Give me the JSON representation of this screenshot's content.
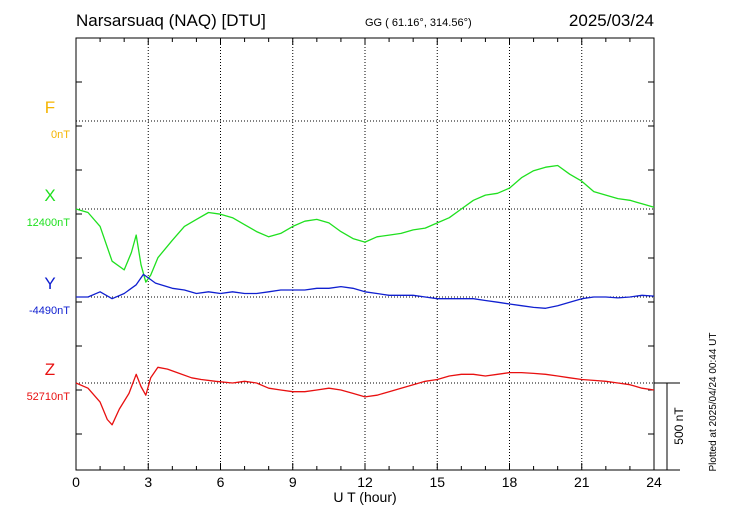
{
  "header": {
    "station": "Narsarsuaq (NAQ)  [DTU]",
    "coords": "GG ( 61.16°, 314.56°)",
    "date": "2025/03/24"
  },
  "side_note": "Plotted at 2025/04/24 00:44 UT",
  "chart_data": {
    "type": "line",
    "title": "Narsarsuaq (NAQ)  [DTU]",
    "xlabel": "U T (hour)",
    "xlim": [
      0,
      24
    ],
    "x_ticks": [
      0,
      3,
      6,
      9,
      12,
      15,
      18,
      21,
      24
    ],
    "grid": true,
    "scale_bar": {
      "label": "500 nT",
      "value_nT": 500
    },
    "series": [
      {
        "name": "F",
        "baseline_label": "0nT",
        "color": "#f5b400",
        "x": [],
        "y": []
      },
      {
        "name": "X",
        "baseline_label": "12400nT",
        "color": "#1fe01f",
        "x": [
          0,
          0.5,
          1,
          1.5,
          2,
          2.3,
          2.5,
          2.7,
          2.9,
          3.1,
          3.4,
          4,
          4.5,
          5,
          5.5,
          6,
          6.5,
          7,
          7.5,
          8,
          8.5,
          9,
          9.5,
          10,
          10.5,
          11,
          11.5,
          12,
          12.5,
          13,
          13.5,
          14,
          14.5,
          15,
          15.5,
          16,
          16.5,
          17,
          17.5,
          18,
          18.5,
          19,
          19.5,
          20,
          20.5,
          21,
          21.5,
          22,
          22.5,
          23,
          23.5,
          24
        ],
        "y": [
          12400,
          12380,
          12300,
          12100,
          12050,
          12150,
          12250,
          12080,
          11980,
          12020,
          12120,
          12220,
          12300,
          12340,
          12380,
          12370,
          12350,
          12310,
          12270,
          12240,
          12260,
          12300,
          12330,
          12340,
          12320,
          12270,
          12230,
          12210,
          12240,
          12250,
          12260,
          12280,
          12290,
          12320,
          12350,
          12400,
          12450,
          12480,
          12490,
          12520,
          12580,
          12620,
          12640,
          12650,
          12600,
          12560,
          12500,
          12480,
          12460,
          12450,
          12430,
          12410
        ]
      },
      {
        "name": "Y",
        "baseline_label": "-4490nT",
        "color": "#1020d0",
        "x": [
          0,
          0.5,
          1,
          1.5,
          2,
          2.5,
          2.8,
          3,
          3.3,
          4,
          4.5,
          5,
          5.5,
          6,
          6.5,
          7,
          7.5,
          8,
          8.5,
          9,
          9.5,
          10,
          10.5,
          11,
          11.5,
          12,
          12.5,
          13,
          13.5,
          14,
          14.5,
          15,
          15.5,
          16,
          16.5,
          17,
          17.5,
          18,
          18.5,
          19,
          19.5,
          20,
          20.5,
          21,
          21.5,
          22,
          22.5,
          23,
          23.5,
          24
        ],
        "y": [
          -4490,
          -4490,
          -4460,
          -4500,
          -4470,
          -4420,
          -4360,
          -4380,
          -4410,
          -4440,
          -4450,
          -4470,
          -4460,
          -4470,
          -4460,
          -4470,
          -4470,
          -4460,
          -4450,
          -4450,
          -4450,
          -4440,
          -4440,
          -4430,
          -4440,
          -4460,
          -4470,
          -4480,
          -4480,
          -4480,
          -4490,
          -4500,
          -4500,
          -4500,
          -4500,
          -4510,
          -4520,
          -4530,
          -4540,
          -4550,
          -4555,
          -4540,
          -4520,
          -4500,
          -4490,
          -4490,
          -4495,
          -4490,
          -4480,
          -4485
        ]
      },
      {
        "name": "Z",
        "baseline_label": "52710nT",
        "color": "#e81010",
        "x": [
          0,
          0.5,
          1,
          1.3,
          1.5,
          1.8,
          2.2,
          2.5,
          2.7,
          2.9,
          3.1,
          3.4,
          3.8,
          4.2,
          4.8,
          5.2,
          5.8,
          6.5,
          7,
          7.5,
          8,
          8.5,
          9,
          9.5,
          10,
          10.5,
          11,
          11.5,
          12,
          12.5,
          13,
          13.5,
          14,
          14.5,
          15,
          15.5,
          16,
          16.5,
          17,
          17.5,
          18,
          18.5,
          19,
          19.5,
          20,
          20.5,
          21,
          21.5,
          22,
          22.5,
          23,
          23.5,
          24
        ],
        "y": [
          52710,
          52680,
          52600,
          52500,
          52470,
          52560,
          52650,
          52760,
          52690,
          52640,
          52740,
          52800,
          52790,
          52770,
          52740,
          52730,
          52720,
          52710,
          52720,
          52710,
          52680,
          52670,
          52660,
          52660,
          52670,
          52680,
          52670,
          52650,
          52630,
          52640,
          52660,
          52680,
          52700,
          52720,
          52730,
          52750,
          52760,
          52760,
          52750,
          52760,
          52770,
          52770,
          52765,
          52760,
          52750,
          52740,
          52730,
          52725,
          52720,
          52710,
          52700,
          52680,
          52670
        ]
      }
    ]
  }
}
